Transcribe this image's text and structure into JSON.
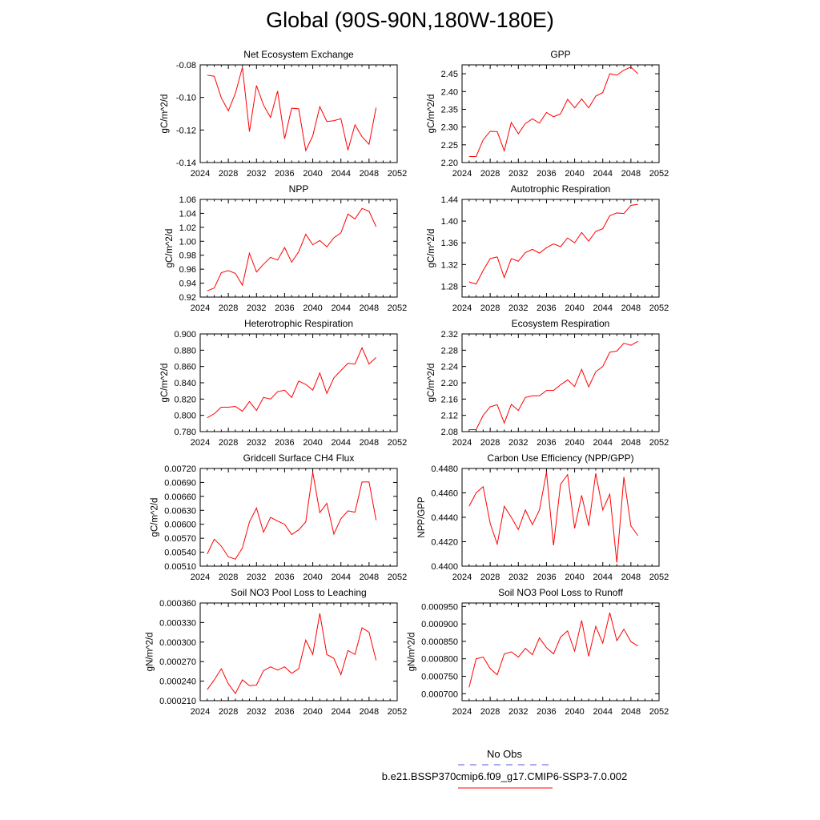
{
  "title": "Global (90S-90N,180W-180E)",
  "legend": {
    "obs_label": "No Obs",
    "obs_color": "#5555dd",
    "case_label": "b.e21.BSSP370cmip6.f09_g17.CMIP6-SSP3-7.0.002",
    "case_color": "#ff0000"
  },
  "chart_data": [
    {
      "type": "line",
      "title": "Net Ecosystem Exchange",
      "ylabel": "gC/m^2/d",
      "xlabel": "",
      "xlim": [
        2024,
        2052
      ],
      "ylim": [
        -0.14,
        -0.08
      ],
      "xticks": [
        "2024",
        "2028",
        "2032",
        "2036",
        "2040",
        "2044",
        "2048",
        "2052"
      ],
      "yticks": [
        "-0.14",
        "-0.12",
        "-0.10",
        "-0.08"
      ],
      "x": [
        2025,
        2026,
        2027,
        2028,
        2029,
        2030,
        2031,
        2032,
        2033,
        2034,
        2035,
        2036,
        2037,
        2038,
        2039,
        2040,
        2041,
        2042,
        2043,
        2044,
        2045,
        2046,
        2047,
        2048,
        2049
      ],
      "values": [
        -0.0863,
        -0.087,
        -0.1003,
        -0.1082,
        -0.0975,
        -0.0815,
        -0.121,
        -0.0927,
        -0.1047,
        -0.1123,
        -0.0961,
        -0.1254,
        -0.1066,
        -0.107,
        -0.1326,
        -0.1236,
        -0.1057,
        -0.1148,
        -0.1143,
        -0.113,
        -0.1324,
        -0.1168,
        -0.1241,
        -0.1288,
        -0.1063
      ],
      "color": "#ff0000"
    },
    {
      "type": "line",
      "title": "GPP",
      "ylabel": "gC/m^2/d",
      "xlabel": "",
      "xlim": [
        2024,
        2052
      ],
      "ylim": [
        2.2,
        2.475
      ],
      "xticks": [
        "2024",
        "2028",
        "2032",
        "2036",
        "2040",
        "2044",
        "2048",
        "2052"
      ],
      "yticks": [
        "2.20",
        "2.25",
        "2.30",
        "2.35",
        "2.40",
        "2.45"
      ],
      "x": [
        2025,
        2026,
        2027,
        2028,
        2029,
        2030,
        2031,
        2032,
        2033,
        2034,
        2035,
        2036,
        2037,
        2038,
        2039,
        2040,
        2041,
        2042,
        2043,
        2044,
        2045,
        2046,
        2047,
        2048,
        2049
      ],
      "values": [
        2.217,
        2.217,
        2.264,
        2.288,
        2.287,
        2.233,
        2.313,
        2.281,
        2.31,
        2.323,
        2.311,
        2.341,
        2.329,
        2.337,
        2.378,
        2.354,
        2.379,
        2.354,
        2.387,
        2.397,
        2.45,
        2.446,
        2.46,
        2.469,
        2.45
      ],
      "color": "#ff0000"
    },
    {
      "type": "line",
      "title": "NPP",
      "ylabel": "gC/m^2/d",
      "xlabel": "",
      "xlim": [
        2024,
        2052
      ],
      "ylim": [
        0.92,
        1.06
      ],
      "xticks": [
        "2024",
        "2028",
        "2032",
        "2036",
        "2040",
        "2044",
        "2048",
        "2052"
      ],
      "yticks": [
        "0.92",
        "0.94",
        "0.96",
        "0.98",
        "1.00",
        "1.02",
        "1.04",
        "1.06"
      ],
      "x": [
        2025,
        2026,
        2027,
        2028,
        2029,
        2030,
        2031,
        2032,
        2033,
        2034,
        2035,
        2036,
        2037,
        2038,
        2039,
        2040,
        2041,
        2042,
        2043,
        2044,
        2045,
        2046,
        2047,
        2048,
        2049
      ],
      "values": [
        0.929,
        0.933,
        0.955,
        0.958,
        0.954,
        0.937,
        0.983,
        0.956,
        0.967,
        0.977,
        0.973,
        0.991,
        0.97,
        0.985,
        1.01,
        0.995,
        1.001,
        0.992,
        1.005,
        1.012,
        1.039,
        1.032,
        1.047,
        1.043,
        1.021
      ],
      "color": "#ff0000"
    },
    {
      "type": "line",
      "title": "Autotrophic Respiration",
      "ylabel": "gC/m^2/d",
      "xlabel": "",
      "xlim": [
        2024,
        2052
      ],
      "ylim": [
        1.26,
        1.44
      ],
      "xticks": [
        "2024",
        "2028",
        "2032",
        "2036",
        "2040",
        "2044",
        "2048",
        "2052"
      ],
      "yticks": [
        "1.28",
        "1.32",
        "1.36",
        "1.40",
        "1.44"
      ],
      "x": [
        2025,
        2026,
        2027,
        2028,
        2029,
        2030,
        2031,
        2032,
        2033,
        2034,
        2035,
        2036,
        2037,
        2038,
        2039,
        2040,
        2041,
        2042,
        2043,
        2044,
        2045,
        2046,
        2047,
        2048,
        2049
      ],
      "values": [
        1.288,
        1.284,
        1.309,
        1.331,
        1.334,
        1.296,
        1.331,
        1.326,
        1.342,
        1.348,
        1.341,
        1.351,
        1.358,
        1.353,
        1.369,
        1.36,
        1.379,
        1.363,
        1.381,
        1.386,
        1.41,
        1.415,
        1.414,
        1.429,
        1.431
      ],
      "color": "#ff0000"
    },
    {
      "type": "line",
      "title": "Heterotrophic Respiration",
      "ylabel": "gC/m^2/d",
      "xlabel": "",
      "xlim": [
        2024,
        2052
      ],
      "ylim": [
        0.78,
        0.9
      ],
      "xticks": [
        "2024",
        "2028",
        "2032",
        "2036",
        "2040",
        "2044",
        "2048",
        "2052"
      ],
      "yticks": [
        "0.780",
        "0.800",
        "0.820",
        "0.840",
        "0.860",
        "0.880",
        "0.900"
      ],
      "x": [
        2025,
        2026,
        2027,
        2028,
        2029,
        2030,
        2031,
        2032,
        2033,
        2034,
        2035,
        2036,
        2037,
        2038,
        2039,
        2040,
        2041,
        2042,
        2043,
        2044,
        2045,
        2046,
        2047,
        2048,
        2049
      ],
      "values": [
        0.797,
        0.802,
        0.81,
        0.81,
        0.811,
        0.805,
        0.817,
        0.806,
        0.822,
        0.82,
        0.829,
        0.831,
        0.822,
        0.842,
        0.838,
        0.831,
        0.852,
        0.827,
        0.846,
        0.855,
        0.864,
        0.863,
        0.883,
        0.863,
        0.871
      ],
      "color": "#ff0000"
    },
    {
      "type": "line",
      "title": "Ecosystem Respiration",
      "ylabel": "gC/m^2/d",
      "xlabel": "",
      "xlim": [
        2024,
        2052
      ],
      "ylim": [
        2.08,
        2.32
      ],
      "xticks": [
        "2024",
        "2028",
        "2032",
        "2036",
        "2040",
        "2044",
        "2048",
        "2052"
      ],
      "yticks": [
        "2.08",
        "2.12",
        "2.16",
        "2.20",
        "2.24",
        "2.28",
        "2.32"
      ],
      "x": [
        2025,
        2026,
        2027,
        2028,
        2029,
        2030,
        2031,
        2032,
        2033,
        2034,
        2035,
        2036,
        2037,
        2038,
        2039,
        2040,
        2041,
        2042,
        2043,
        2044,
        2045,
        2046,
        2047,
        2048,
        2049
      ],
      "values": [
        2.085,
        2.085,
        2.12,
        2.141,
        2.146,
        2.101,
        2.147,
        2.132,
        2.164,
        2.168,
        2.168,
        2.181,
        2.181,
        2.195,
        2.207,
        2.191,
        2.233,
        2.19,
        2.227,
        2.24,
        2.275,
        2.278,
        2.297,
        2.292,
        2.302
      ],
      "color": "#ff0000"
    },
    {
      "type": "line",
      "title": "Gridcell Surface CH4 Flux",
      "ylabel": "gC/m^2/d",
      "xlabel": "",
      "xlim": [
        2024,
        2052
      ],
      "ylim": [
        0.0051,
        0.0072
      ],
      "xticks": [
        "2024",
        "2028",
        "2032",
        "2036",
        "2040",
        "2044",
        "2048",
        "2052"
      ],
      "yticks": [
        "0.00510",
        "0.00540",
        "0.00570",
        "0.00600",
        "0.00630",
        "0.00660",
        "0.00690",
        "0.00720"
      ],
      "x": [
        2025,
        2026,
        2027,
        2028,
        2029,
        2030,
        2031,
        2032,
        2033,
        2034,
        2035,
        2036,
        2037,
        2038,
        2039,
        2040,
        2041,
        2042,
        2043,
        2044,
        2045,
        2046,
        2047,
        2048,
        2049
      ],
      "values": [
        0.00536,
        0.00568,
        0.00553,
        0.0053,
        0.00525,
        0.00549,
        0.00605,
        0.00635,
        0.00583,
        0.00615,
        0.00607,
        0.006,
        0.00578,
        0.00588,
        0.00605,
        0.00712,
        0.00625,
        0.00645,
        0.00579,
        0.00612,
        0.00629,
        0.00626,
        0.00691,
        0.00691,
        0.00609
      ],
      "color": "#ff0000"
    },
    {
      "type": "line",
      "title": "Carbon Use Efficiency (NPP/GPP)",
      "ylabel": "NPP/GPP",
      "xlabel": "",
      "xlim": [
        2024,
        2052
      ],
      "ylim": [
        0.44,
        0.448
      ],
      "xticks": [
        "2024",
        "2028",
        "2032",
        "2036",
        "2040",
        "2044",
        "2048",
        "2052"
      ],
      "yticks": [
        "0.4400",
        "0.4420",
        "0.4440",
        "0.4460",
        "0.4480"
      ],
      "x": [
        2025,
        2026,
        2027,
        2028,
        2029,
        2030,
        2031,
        2032,
        2033,
        2034,
        2035,
        2036,
        2037,
        2038,
        2039,
        2040,
        2041,
        2042,
        2043,
        2044,
        2045,
        2046,
        2047,
        2048,
        2049
      ],
      "values": [
        0.4449,
        0.446,
        0.4465,
        0.4435,
        0.4418,
        0.4449,
        0.444,
        0.443,
        0.4446,
        0.4434,
        0.4446,
        0.4477,
        0.4417,
        0.4467,
        0.4475,
        0.4431,
        0.4458,
        0.4433,
        0.4476,
        0.4446,
        0.4459,
        0.4403,
        0.4473,
        0.4433,
        0.4425
      ],
      "color": "#ff0000"
    },
    {
      "type": "line",
      "title": "Soil NO3 Pool Loss to Leaching",
      "ylabel": "gN/m^2/d",
      "xlabel": "",
      "xlim": [
        2024,
        2052
      ],
      "ylim": [
        0.00021,
        0.00036
      ],
      "xticks": [
        "2024",
        "2028",
        "2032",
        "2036",
        "2040",
        "2044",
        "2048",
        "2052"
      ],
      "yticks": [
        "0.000210",
        "0.000240",
        "0.000270",
        "0.000300",
        "0.000330",
        "0.000360"
      ],
      "x": [
        2025,
        2026,
        2027,
        2028,
        2029,
        2030,
        2031,
        2032,
        2033,
        2034,
        2035,
        2036,
        2037,
        2038,
        2039,
        2040,
        2041,
        2042,
        2043,
        2044,
        2045,
        2046,
        2047,
        2048,
        2049
      ],
      "values": [
        0.000227,
        0.000242,
        0.000259,
        0.000236,
        0.000221,
        0.000242,
        0.000233,
        0.000234,
        0.000256,
        0.000262,
        0.000257,
        0.000262,
        0.000252,
        0.000259,
        0.000303,
        0.000281,
        0.000344,
        0.000281,
        0.000275,
        0.00025,
        0.000287,
        0.000281,
        0.000322,
        0.000315,
        0.000272
      ],
      "color": "#ff0000"
    },
    {
      "type": "line",
      "title": "Soil NO3 Pool Loss to Runoff",
      "ylabel": "gN/m^2/d",
      "xlabel": "",
      "xlim": [
        2024,
        2052
      ],
      "ylim": [
        0.00068,
        0.00096
      ],
      "xticks": [
        "2024",
        "2028",
        "2032",
        "2036",
        "2040",
        "2044",
        "2048",
        "2052"
      ],
      "yticks": [
        "0.000700",
        "0.000750",
        "0.000800",
        "0.000850",
        "0.000900",
        "0.000950"
      ],
      "x": [
        2025,
        2026,
        2027,
        2028,
        2029,
        2030,
        2031,
        2032,
        2033,
        2034,
        2035,
        2036,
        2037,
        2038,
        2039,
        2040,
        2041,
        2042,
        2043,
        2044,
        2045,
        2046,
        2047,
        2048,
        2049
      ],
      "values": [
        0.000718,
        0.0008,
        0.000805,
        0.000772,
        0.000754,
        0.000814,
        0.00082,
        0.000805,
        0.00083,
        0.000812,
        0.00086,
        0.000832,
        0.000814,
        0.000862,
        0.00088,
        0.000822,
        0.00091,
        0.000807,
        0.000893,
        0.000845,
        0.000932,
        0.000852,
        0.000885,
        0.000849,
        0.000837
      ],
      "color": "#ff0000"
    }
  ]
}
